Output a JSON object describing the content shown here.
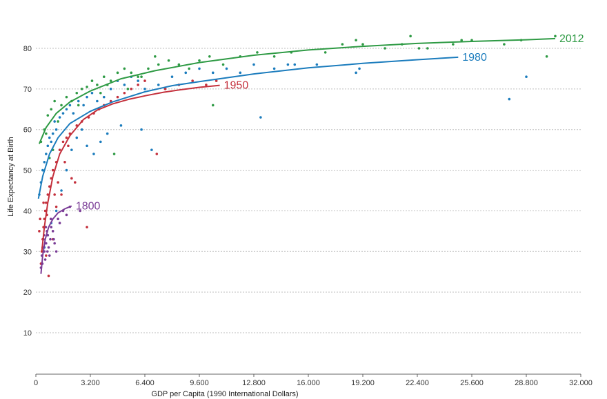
{
  "chart_data": {
    "type": "scatter",
    "title": "",
    "xlabel": "GDP per Capita (1990 International Dollars)",
    "ylabel": "Life Expectancy at Birth",
    "xlim": [
      0,
      32000
    ],
    "ylim": [
      0,
      85
    ],
    "x_ticks": [
      0,
      3200,
      6400,
      9600,
      12800,
      16000,
      19200,
      22400,
      25600,
      28800,
      32000
    ],
    "x_tick_labels": [
      "0",
      "3.200",
      "6.400",
      "9.600",
      "12.800",
      "16.000",
      "19.200",
      "22.400",
      "25.600",
      "28.800",
      "32.000"
    ],
    "y_ticks": [
      10,
      20,
      30,
      40,
      50,
      60,
      70,
      80
    ],
    "y_tick_labels": [
      "10",
      "20",
      "30",
      "40",
      "50",
      "60",
      "70",
      "80"
    ],
    "grid": true,
    "series": [
      {
        "name": "2012",
        "color": "#2e9a44",
        "trend": {
          "x": [
            200,
            600,
            1200,
            2000,
            3200,
            5000,
            7000,
            9600,
            12800,
            16000,
            19200,
            22400,
            25600,
            28800,
            30500
          ],
          "y": [
            56.5,
            60.5,
            64.0,
            66.8,
            69.5,
            72.5,
            74.5,
            76.5,
            78.3,
            79.6,
            80.5,
            81.2,
            81.7,
            82.1,
            82.4
          ]
        },
        "points": [
          [
            300,
            57
          ],
          [
            500,
            60
          ],
          [
            700,
            63.5
          ],
          [
            900,
            65
          ],
          [
            1100,
            67
          ],
          [
            1300,
            62
          ],
          [
            1500,
            66
          ],
          [
            1800,
            68
          ],
          [
            2100,
            67
          ],
          [
            2400,
            69
          ],
          [
            2700,
            70
          ],
          [
            3000,
            70.5
          ],
          [
            3300,
            72
          ],
          [
            3600,
            71
          ],
          [
            4000,
            73
          ],
          [
            4400,
            72
          ],
          [
            4800,
            74
          ],
          [
            5200,
            75
          ],
          [
            5600,
            74
          ],
          [
            6000,
            73
          ],
          [
            6600,
            75
          ],
          [
            7200,
            76
          ],
          [
            7800,
            77
          ],
          [
            8400,
            76
          ],
          [
            9000,
            75
          ],
          [
            9600,
            77
          ],
          [
            10200,
            78
          ],
          [
            10400,
            66
          ],
          [
            11000,
            76
          ],
          [
            12000,
            78
          ],
          [
            13000,
            79
          ],
          [
            14000,
            78
          ],
          [
            15000,
            79
          ],
          [
            17000,
            79
          ],
          [
            18000,
            81
          ],
          [
            18800,
            82
          ],
          [
            19200,
            81
          ],
          [
            20500,
            80
          ],
          [
            21500,
            81
          ],
          [
            22000,
            83
          ],
          [
            22500,
            80
          ],
          [
            23000,
            80
          ],
          [
            24500,
            81
          ],
          [
            25000,
            82
          ],
          [
            25600,
            82
          ],
          [
            27500,
            81
          ],
          [
            28500,
            82
          ],
          [
            30000,
            78
          ],
          [
            30500,
            83
          ],
          [
            800,
            53
          ],
          [
            1000,
            55
          ],
          [
            600,
            59
          ],
          [
            2500,
            66
          ],
          [
            3800,
            69
          ],
          [
            4200,
            71
          ],
          [
            4600,
            54
          ],
          [
            5400,
            70
          ],
          [
            6200,
            73
          ],
          [
            7000,
            78
          ]
        ]
      },
      {
        "name": "1980",
        "color": "#1b7cbd",
        "trend": {
          "x": [
            150,
            400,
            800,
            1300,
            2000,
            3200,
            4500,
            6400,
            8000,
            9600,
            12800,
            16000,
            19200,
            22400,
            24800
          ],
          "y": [
            43.0,
            48.5,
            54.0,
            58.0,
            61.5,
            64.5,
            66.8,
            69.3,
            70.8,
            71.8,
            73.7,
            75.2,
            76.3,
            77.2,
            77.8
          ]
        },
        "points": [
          [
            200,
            44
          ],
          [
            300,
            47
          ],
          [
            400,
            50
          ],
          [
            500,
            52
          ],
          [
            600,
            54
          ],
          [
            700,
            56
          ],
          [
            800,
            58
          ],
          [
            900,
            57
          ],
          [
            1000,
            59
          ],
          [
            1100,
            62
          ],
          [
            1200,
            60
          ],
          [
            1400,
            63
          ],
          [
            1600,
            64
          ],
          [
            1800,
            65
          ],
          [
            2000,
            66
          ],
          [
            2200,
            64
          ],
          [
            2500,
            67
          ],
          [
            2800,
            66
          ],
          [
            3000,
            68
          ],
          [
            3300,
            69
          ],
          [
            3600,
            67
          ],
          [
            4000,
            68
          ],
          [
            4400,
            70
          ],
          [
            4800,
            72
          ],
          [
            5200,
            71
          ],
          [
            5600,
            73
          ],
          [
            6000,
            72
          ],
          [
            6400,
            70
          ],
          [
            6800,
            55
          ],
          [
            7200,
            71
          ],
          [
            8000,
            73
          ],
          [
            8800,
            74
          ],
          [
            9600,
            75
          ],
          [
            10400,
            74
          ],
          [
            11200,
            75
          ],
          [
            12000,
            74
          ],
          [
            12800,
            76
          ],
          [
            13200,
            63
          ],
          [
            14000,
            75
          ],
          [
            14800,
            76
          ],
          [
            15200,
            76
          ],
          [
            16500,
            76
          ],
          [
            18800,
            74
          ],
          [
            19000,
            75
          ],
          [
            27800,
            67.5
          ],
          [
            28800,
            73
          ],
          [
            500,
            31
          ],
          [
            700,
            34
          ],
          [
            900,
            37
          ],
          [
            1200,
            40
          ],
          [
            1500,
            45
          ],
          [
            1800,
            50
          ],
          [
            2100,
            55
          ],
          [
            2400,
            58
          ],
          [
            2700,
            60
          ],
          [
            3000,
            56
          ],
          [
            3400,
            54
          ],
          [
            3800,
            57
          ],
          [
            4200,
            59
          ],
          [
            5000,
            61
          ],
          [
            6200,
            60
          ]
        ]
      },
      {
        "name": "1950",
        "color": "#c4303c",
        "trend": {
          "x": [
            350,
            500,
            700,
            1000,
            1400,
            2000,
            2800,
            3600,
            4500,
            5500,
            6500,
            7500,
            8500,
            9600,
            10800
          ],
          "y": [
            30.0,
            36.0,
            42.0,
            48.5,
            54.0,
            58.5,
            62.5,
            64.8,
            66.3,
            67.5,
            68.4,
            69.2,
            69.8,
            70.4,
            70.9
          ]
        },
        "points": [
          [
            300,
            27
          ],
          [
            350,
            30
          ],
          [
            400,
            33
          ],
          [
            450,
            36
          ],
          [
            500,
            38
          ],
          [
            550,
            40
          ],
          [
            600,
            42
          ],
          [
            650,
            39
          ],
          [
            700,
            44
          ],
          [
            800,
            46
          ],
          [
            900,
            48
          ],
          [
            1000,
            50
          ],
          [
            1100,
            44
          ],
          [
            1200,
            52
          ],
          [
            1300,
            47
          ],
          [
            1400,
            55
          ],
          [
            1600,
            57
          ],
          [
            1800,
            58
          ],
          [
            2000,
            59
          ],
          [
            2100,
            48
          ],
          [
            2300,
            47
          ],
          [
            2400,
            61
          ],
          [
            2700,
            62
          ],
          [
            3000,
            36
          ],
          [
            3100,
            63
          ],
          [
            3400,
            64
          ],
          [
            3700,
            65
          ],
          [
            4000,
            66
          ],
          [
            4400,
            67
          ],
          [
            4800,
            68
          ],
          [
            5200,
            69
          ],
          [
            5600,
            70
          ],
          [
            6000,
            71
          ],
          [
            6400,
            72
          ],
          [
            7100,
            54
          ],
          [
            7600,
            70
          ],
          [
            8400,
            71
          ],
          [
            9200,
            72
          ],
          [
            10000,
            71
          ],
          [
            10600,
            72
          ],
          [
            200,
            35
          ],
          [
            250,
            38
          ],
          [
            450,
            42
          ],
          [
            600,
            29
          ],
          [
            750,
            24
          ],
          [
            1000,
            33
          ],
          [
            1200,
            41
          ],
          [
            1500,
            44
          ],
          [
            1700,
            52
          ],
          [
            1900,
            56
          ]
        ]
      },
      {
        "name": "1800",
        "color": "#7a3c96",
        "trend": {
          "x": [
            300,
            400,
            550,
            750,
            1000,
            1300,
            1700,
            2100
          ],
          "y": [
            24.5,
            29.0,
            33.0,
            36.0,
            38.0,
            39.5,
            40.5,
            41.2
          ]
        },
        "points": [
          [
            300,
            26
          ],
          [
            350,
            29
          ],
          [
            400,
            31
          ],
          [
            450,
            33
          ],
          [
            500,
            30
          ],
          [
            550,
            28
          ],
          [
            600,
            32
          ],
          [
            650,
            35
          ],
          [
            700,
            34
          ],
          [
            750,
            31
          ],
          [
            800,
            29
          ],
          [
            850,
            33
          ],
          [
            900,
            36
          ],
          [
            1000,
            35
          ],
          [
            1100,
            32
          ],
          [
            1200,
            30
          ],
          [
            1300,
            38
          ],
          [
            1400,
            37
          ],
          [
            1600,
            40
          ],
          [
            1800,
            39
          ],
          [
            2000,
            41
          ],
          [
            2600,
            40
          ],
          [
            380,
            27
          ],
          [
            480,
            34
          ],
          [
            580,
            36
          ],
          [
            680,
            30
          ],
          [
            880,
            38
          ],
          [
            1050,
            33
          ]
        ]
      }
    ]
  }
}
